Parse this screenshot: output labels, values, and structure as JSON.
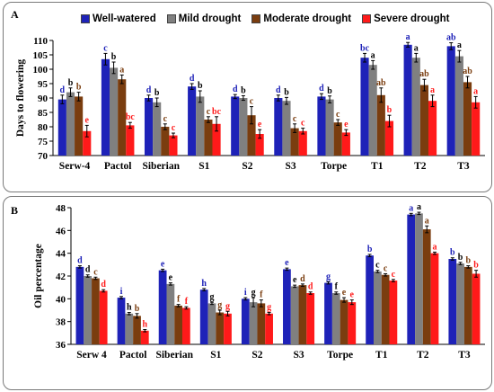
{
  "legend": [
    "Well-watered",
    "Mild drought",
    "Moderate drought",
    "Severe drought"
  ],
  "series_colors": [
    "#1e22b8",
    "#808080",
    "#7a3d0f",
    "#ff1a1a"
  ],
  "letter_colors": [
    "#1e22b8",
    "#000000",
    "#7a3d0f",
    "#ff1a1a"
  ],
  "chart_data": [
    {
      "type": "bar",
      "panel_label": "A",
      "ylabel": "Days to flowering",
      "ylim": [
        70,
        110
      ],
      "yticks": [
        70,
        75,
        80,
        85,
        90,
        95,
        100,
        105,
        110
      ],
      "categories": [
        "Serw-4",
        "Pactol",
        "Siberian",
        "S1",
        "S2",
        "S3",
        "Torpe",
        "T1",
        "T2",
        "T3"
      ],
      "series": [
        {
          "name": "Well-watered",
          "values": [
            89.5,
            103.5,
            90,
            94,
            90.5,
            90,
            90.5,
            104,
            108.5,
            108
          ],
          "errors": [
            1.5,
            2.0,
            1.0,
            1.0,
            0.7,
            1.0,
            1.0,
            1.5,
            0.8,
            1.2
          ],
          "letters": [
            "d",
            "c",
            "d",
            "d",
            "d",
            "d",
            "d",
            "bc",
            "a",
            "ab"
          ]
        },
        {
          "name": "Mild drought",
          "values": [
            92,
            100.5,
            88.5,
            90.5,
            90,
            89,
            89.5,
            101.5,
            104,
            104.5
          ],
          "errors": [
            1.5,
            2.0,
            1.5,
            2.0,
            0.8,
            1.2,
            1.2,
            1.5,
            1.5,
            2.0
          ],
          "letters": [
            "b",
            "b",
            "b",
            "b",
            "b",
            "b",
            "b",
            "a",
            "a",
            "a"
          ]
        },
        {
          "name": "Moderate drought",
          "values": [
            90.5,
            96.5,
            80,
            82.5,
            84,
            79.5,
            81.5,
            91,
            94.5,
            95.5
          ],
          "errors": [
            1.5,
            1.5,
            1.0,
            1.0,
            3.0,
            1.5,
            1.0,
            2.5,
            2.0,
            2.0
          ],
          "letters": [
            "b",
            "a",
            "c",
            "c",
            "c",
            "c",
            "c",
            "ab",
            "ab",
            "ab"
          ]
        },
        {
          "name": "Severe drought",
          "values": [
            78.5,
            80.5,
            77,
            81,
            77.5,
            78.5,
            78,
            82,
            89,
            88.5
          ],
          "errors": [
            2.0,
            1.0,
            0.8,
            2.5,
            1.5,
            1.0,
            1.0,
            2.0,
            2.0,
            2.0
          ],
          "letters": [
            "e",
            "bc",
            "c",
            "bc",
            "e",
            "c",
            "e",
            "b",
            "a",
            "a"
          ]
        }
      ]
    },
    {
      "type": "bar",
      "panel_label": "B",
      "ylabel": "Oil percentage",
      "ylim": [
        36,
        48
      ],
      "yticks": [
        36,
        38,
        40,
        42,
        44,
        46,
        48
      ],
      "categories": [
        "Serw 4",
        "Pactol",
        "Siberian",
        "S1",
        "S2",
        "S3",
        "Torpe",
        "T1",
        "T2",
        "T3"
      ],
      "series": [
        {
          "name": "Well-watered",
          "values": [
            42.8,
            40.1,
            42.5,
            40.8,
            40.0,
            42.6,
            41.4,
            43.8,
            47.4,
            43.5
          ],
          "errors": [
            0.1,
            0.1,
            0.1,
            0.1,
            0.1,
            0.1,
            0.1,
            0.1,
            0.1,
            0.1
          ],
          "letters": [
            "d",
            "i",
            "e",
            "h",
            "i",
            "e",
            "g",
            "b",
            "a",
            "b"
          ]
        },
        {
          "name": "Mild drought",
          "values": [
            42.0,
            38.7,
            41.3,
            39.6,
            39.7,
            41.1,
            40.5,
            42.4,
            47.5,
            43.1
          ],
          "errors": [
            0.1,
            0.1,
            0.1,
            0.1,
            0.4,
            0.1,
            0.1,
            0.1,
            0.1,
            0.1
          ],
          "letters": [
            "d",
            "h",
            "e",
            "g",
            "g",
            "e",
            "f",
            "c",
            "a",
            "b"
          ]
        },
        {
          "name": "Moderate drought",
          "values": [
            41.8,
            38.5,
            39.4,
            38.8,
            39.6,
            41.2,
            39.9,
            42.1,
            46.1,
            42.8
          ],
          "errors": [
            0.1,
            0.2,
            0.1,
            0.2,
            0.3,
            0.1,
            0.2,
            0.1,
            0.3,
            0.1
          ],
          "letters": [
            "c",
            "b",
            "f",
            "g",
            "f",
            "d",
            "e",
            "c",
            "a",
            "b"
          ]
        },
        {
          "name": "Severe drought",
          "values": [
            40.7,
            37.2,
            39.2,
            38.7,
            38.7,
            40.5,
            39.7,
            41.6,
            44.0,
            42.2
          ],
          "errors": [
            0.1,
            0.1,
            0.1,
            0.2,
            0.1,
            0.1,
            0.2,
            0.1,
            0.1,
            0.3
          ],
          "letters": [
            "d",
            "h",
            "f",
            "g",
            "g",
            "d",
            "e",
            "c",
            "a",
            "b"
          ]
        }
      ]
    }
  ]
}
